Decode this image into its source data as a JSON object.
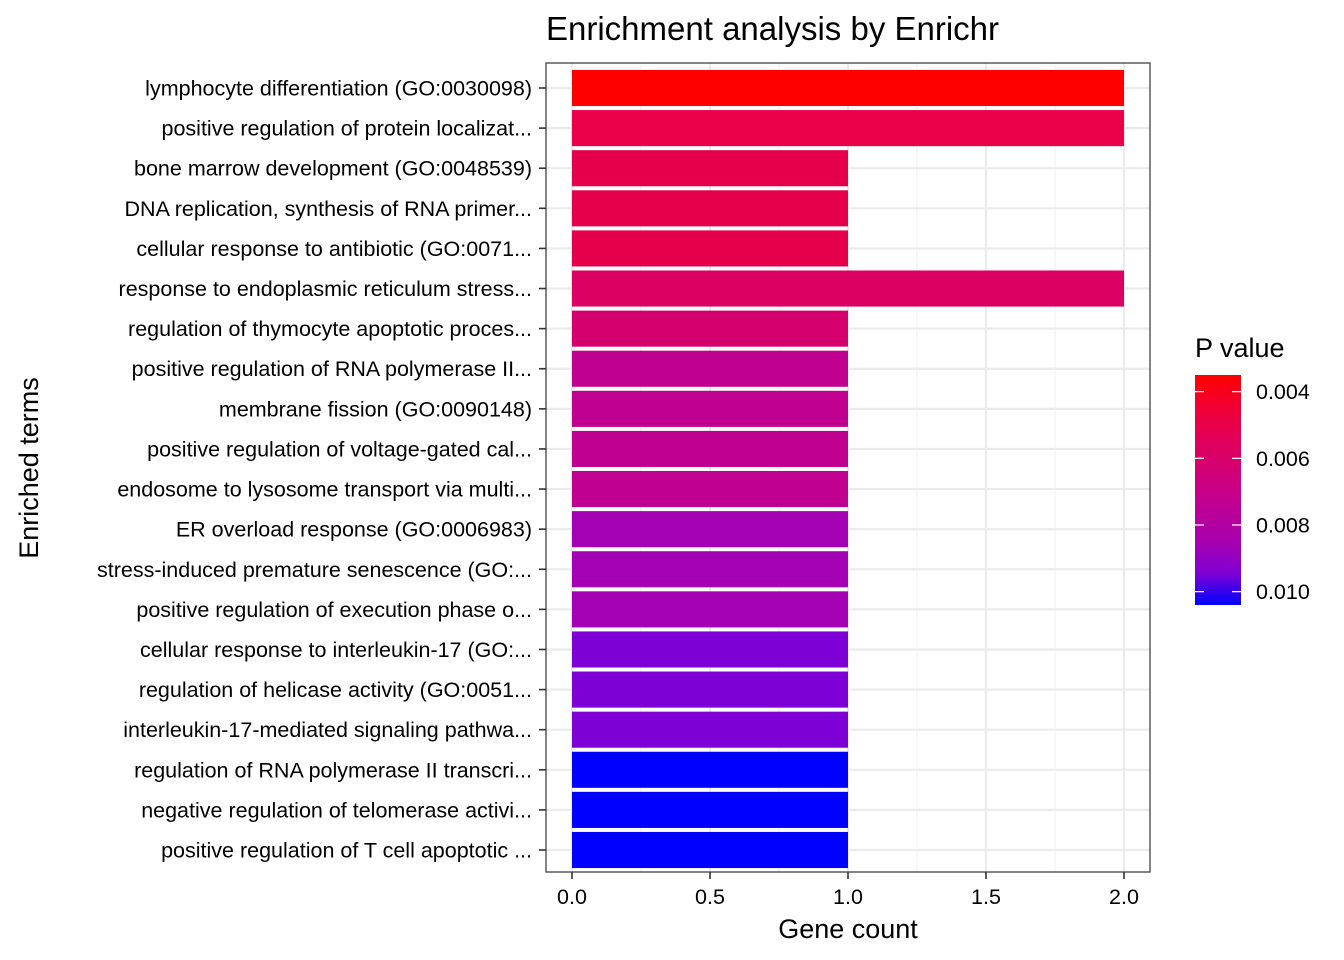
{
  "chart_data": {
    "type": "bar",
    "orientation": "horizontal",
    "title": "Enrichment analysis by Enrichr",
    "xlabel": "Gene count",
    "ylabel": "Enriched terms",
    "xlim": [
      -0.09,
      2.09
    ],
    "xticks": [
      "0.0",
      "0.5",
      "1.0",
      "1.5",
      "2.0"
    ],
    "xtick_values": [
      0,
      0.5,
      1.0,
      1.5,
      2.0
    ],
    "grid": true,
    "categories": [
      "lymphocyte differentiation (GO:0030098)",
      "positive regulation of protein localizat...",
      "bone marrow development (GO:0048539)",
      "DNA replication, synthesis of RNA primer...",
      "cellular response to antibiotic (GO:0071...",
      "response to endoplasmic reticulum stress...",
      "regulation of thymocyte apoptotic proces...",
      "positive regulation of RNA polymerase II...",
      "membrane fission (GO:0090148)",
      "positive regulation of voltage-gated cal...",
      "endosome to lysosome transport via multi...",
      "ER overload response (GO:0006983)",
      "stress-induced premature senescence (GO:...",
      "positive regulation of execution phase o...",
      "cellular response to interleukin-17 (GO:...",
      "regulation of helicase activity (GO:0051...",
      "interleukin-17-mediated signaling pathwa...",
      "regulation of RNA polymerase II transcri...",
      "negative regulation of telomerase activi...",
      "positive regulation of T cell apoptotic ..."
    ],
    "values": [
      2,
      2,
      1,
      1,
      1,
      2,
      1,
      1,
      1,
      1,
      1,
      1,
      1,
      1,
      1,
      1,
      1,
      1,
      1,
      1
    ],
    "p_values": [
      0.0035,
      0.0045,
      0.0048,
      0.0048,
      0.0048,
      0.0056,
      0.0062,
      0.0071,
      0.0071,
      0.0071,
      0.0071,
      0.0083,
      0.0083,
      0.0083,
      0.0094,
      0.0094,
      0.0094,
      0.0104,
      0.0104,
      0.0104
    ],
    "bar_colors": [
      "#FF0000",
      "#EB004A",
      "#E6004C",
      "#E6004C",
      "#E6004C",
      "#DD0064",
      "#D5006E",
      "#C00090",
      "#C00090",
      "#C00090",
      "#C00090",
      "#A400B4",
      "#A400B4",
      "#A400B4",
      "#7F00D6",
      "#7F00D6",
      "#7F00D6",
      "#0000FF",
      "#0000FF",
      "#0000FF"
    ],
    "legend": {
      "title": "P value",
      "position": "right",
      "type": "colorbar",
      "low_color": "#FF0000",
      "high_color": "#0000FF",
      "range": [
        0.0035,
        0.0104
      ],
      "tick_labels": [
        "0.004",
        "0.006",
        "0.008",
        "0.010"
      ],
      "tick_values": [
        0.004,
        0.006,
        0.008,
        0.01
      ]
    }
  }
}
